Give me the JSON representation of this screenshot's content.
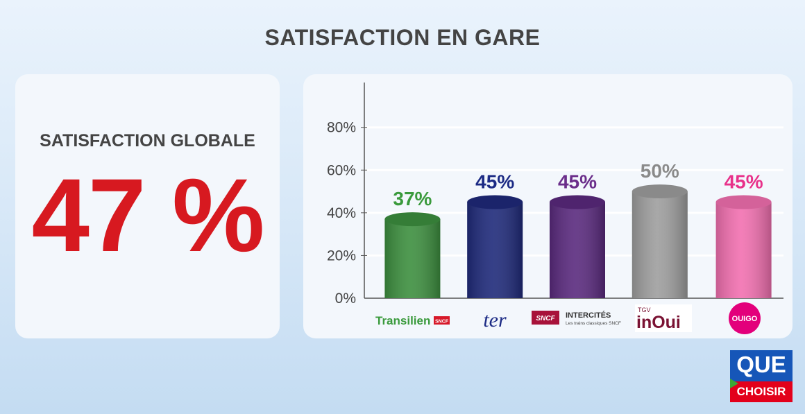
{
  "title": "SATISFACTION EN GARE",
  "global": {
    "label": "SATISFACTION GLOBALE",
    "value": "47 %"
  },
  "chart_data": {
    "type": "bar",
    "categories": [
      "Transilien SNCF",
      "TER",
      "SNCF Intercités",
      "TGV inOui",
      "Ouigo"
    ],
    "values": [
      37,
      45,
      45,
      50,
      45
    ],
    "value_labels": [
      "37%",
      "45%",
      "45%",
      "50%",
      "45%"
    ],
    "colors": [
      "#3d8f3f",
      "#1f2a7a",
      "#5a2a7e",
      "#9e9e9e",
      "#f270b0"
    ],
    "label_colors": [
      "#3a9a3c",
      "#1c2b85",
      "#6a2d8a",
      "#8a8a8a",
      "#e8318a"
    ],
    "ylim": [
      0,
      100
    ],
    "yticks": [
      0,
      20,
      40,
      60,
      80
    ],
    "ytick_labels": [
      "0%",
      "20%",
      "40%",
      "60%",
      "80%"
    ],
    "title": "",
    "xlabel": "",
    "ylabel": "",
    "grid": true
  },
  "brand_labels": {
    "transilien": "Transilien",
    "transilien_sncf": "SNCF",
    "ter": "ter",
    "intercites_sncf": "SNCF",
    "intercites_name": "INTERCITÉS",
    "intercites_tagline": "Les trains classiques SNCF",
    "tgv": "TGV",
    "inoui": "inOui",
    "ouigo": "OUIGO"
  },
  "logo": {
    "line1": "QUE",
    "line2": "CHOISIR"
  }
}
